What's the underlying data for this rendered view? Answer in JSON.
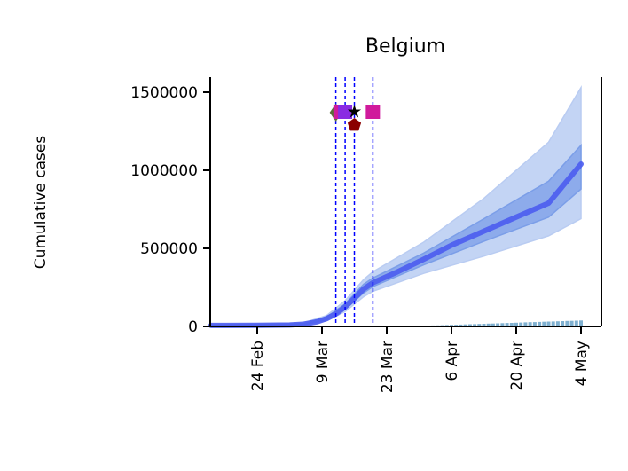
{
  "chart_data": {
    "type": "line",
    "title": "Belgium",
    "xlabel": "",
    "ylabel": "Cumulative cases",
    "ylim": [
      0,
      1600000
    ],
    "xlim": [
      "2020-02-13",
      "2020-05-07"
    ],
    "y_ticks": [
      0,
      500000,
      1000000,
      1500000
    ],
    "y_tick_labels": [
      "0",
      "500000",
      "1000000",
      "1500000"
    ],
    "x_ticks": [
      "2020-02-24",
      "2020-03-09",
      "2020-03-23",
      "2020-04-06",
      "2020-04-20",
      "2020-05-04"
    ],
    "x_tick_labels": [
      "24 Feb",
      "9 Mar",
      "23 Mar",
      "6 Apr",
      "20 Apr",
      "4 May"
    ],
    "grid": false,
    "series": [
      {
        "kind": "median",
        "color": "#4b5cf0",
        "points": [
          [
            "2020-02-14",
            6000
          ],
          [
            "2020-02-24",
            7000
          ],
          [
            "2020-03-02",
            9000
          ],
          [
            "2020-03-05",
            14000
          ],
          [
            "2020-03-08",
            30000
          ],
          [
            "2020-03-10",
            50000
          ],
          [
            "2020-03-12",
            80000
          ],
          [
            "2020-03-14",
            125000
          ],
          [
            "2020-03-16",
            180000
          ],
          [
            "2020-03-18",
            240000
          ],
          [
            "2020-03-20",
            280000
          ],
          [
            "2020-03-25",
            345000
          ],
          [
            "2020-03-31",
            430000
          ],
          [
            "2020-04-06",
            520000
          ],
          [
            "2020-04-13",
            610000
          ],
          [
            "2020-04-20",
            700000
          ],
          [
            "2020-04-27",
            790000
          ],
          [
            "2020-05-04",
            1040000
          ]
        ]
      },
      {
        "kind": "interval_50",
        "color": "#7b9ee8",
        "upper": [
          [
            "2020-02-14",
            8000
          ],
          [
            "2020-03-05",
            18000
          ],
          [
            "2020-03-10",
            60000
          ],
          [
            "2020-03-14",
            145000
          ],
          [
            "2020-03-18",
            270000
          ],
          [
            "2020-03-20",
            310000
          ],
          [
            "2020-03-31",
            470000
          ],
          [
            "2020-04-13",
            690000
          ],
          [
            "2020-04-27",
            930000
          ],
          [
            "2020-05-04",
            1160000
          ]
        ],
        "lower": [
          [
            "2020-02-14",
            4000
          ],
          [
            "2020-03-05",
            11000
          ],
          [
            "2020-03-10",
            42000
          ],
          [
            "2020-03-14",
            110000
          ],
          [
            "2020-03-18",
            215000
          ],
          [
            "2020-03-20",
            255000
          ],
          [
            "2020-03-31",
            395000
          ],
          [
            "2020-04-13",
            545000
          ],
          [
            "2020-04-27",
            700000
          ],
          [
            "2020-05-04",
            880000
          ]
        ]
      },
      {
        "kind": "interval_95",
        "color": "#b9ccf2",
        "upper": [
          [
            "2020-02-14",
            10000
          ],
          [
            "2020-03-05",
            22000
          ],
          [
            "2020-03-10",
            70000
          ],
          [
            "2020-03-14",
            165000
          ],
          [
            "2020-03-18",
            300000
          ],
          [
            "2020-03-20",
            350000
          ],
          [
            "2020-03-31",
            540000
          ],
          [
            "2020-04-13",
            820000
          ],
          [
            "2020-04-27",
            1180000
          ],
          [
            "2020-05-04",
            1530000
          ]
        ],
        "lower": [
          [
            "2020-02-14",
            3000
          ],
          [
            "2020-03-05",
            8000
          ],
          [
            "2020-03-10",
            35000
          ],
          [
            "2020-03-14",
            95000
          ],
          [
            "2020-03-18",
            190000
          ],
          [
            "2020-03-20",
            225000
          ],
          [
            "2020-03-31",
            340000
          ],
          [
            "2020-04-13",
            450000
          ],
          [
            "2020-04-27",
            580000
          ],
          [
            "2020-05-04",
            690000
          ]
        ]
      }
    ],
    "daily_bars": {
      "color": "#7fb0d0",
      "start": "2020-03-28",
      "values": [
        1000,
        2000,
        3000,
        4000,
        5000,
        6000,
        7000,
        8000,
        9000,
        10000,
        11000,
        12000,
        13000,
        14000,
        15000,
        16000,
        17000,
        18000,
        19000,
        20000,
        21000,
        22000,
        23000,
        24000,
        25000,
        26000,
        27000,
        28000,
        29000,
        30000,
        31000,
        32000,
        33000,
        34000,
        35000,
        36000,
        37000,
        38000
      ]
    },
    "intervention_lines": {
      "color": "#0000ff",
      "dates": [
        "2020-03-12",
        "2020-03-14",
        "2020-03-16",
        "2020-03-20"
      ]
    },
    "intervention_markers": [
      {
        "date": "2020-03-12",
        "value": 1370000,
        "shape": "diamond",
        "color": "#5a6e3a"
      },
      {
        "date": "2020-03-13",
        "value": 1375000,
        "shape": "square",
        "color": "#d01a9c"
      },
      {
        "date": "2020-03-14",
        "value": 1375000,
        "shape": "square",
        "color": "#8a2be2"
      },
      {
        "date": "2020-03-16",
        "value": 1375000,
        "shape": "star",
        "color": "#000000"
      },
      {
        "date": "2020-03-16",
        "value": 1290000,
        "shape": "pentagon",
        "color": "#8b0000"
      },
      {
        "date": "2020-03-20",
        "value": 1375000,
        "shape": "square",
        "color": "#d01a9c"
      }
    ]
  }
}
